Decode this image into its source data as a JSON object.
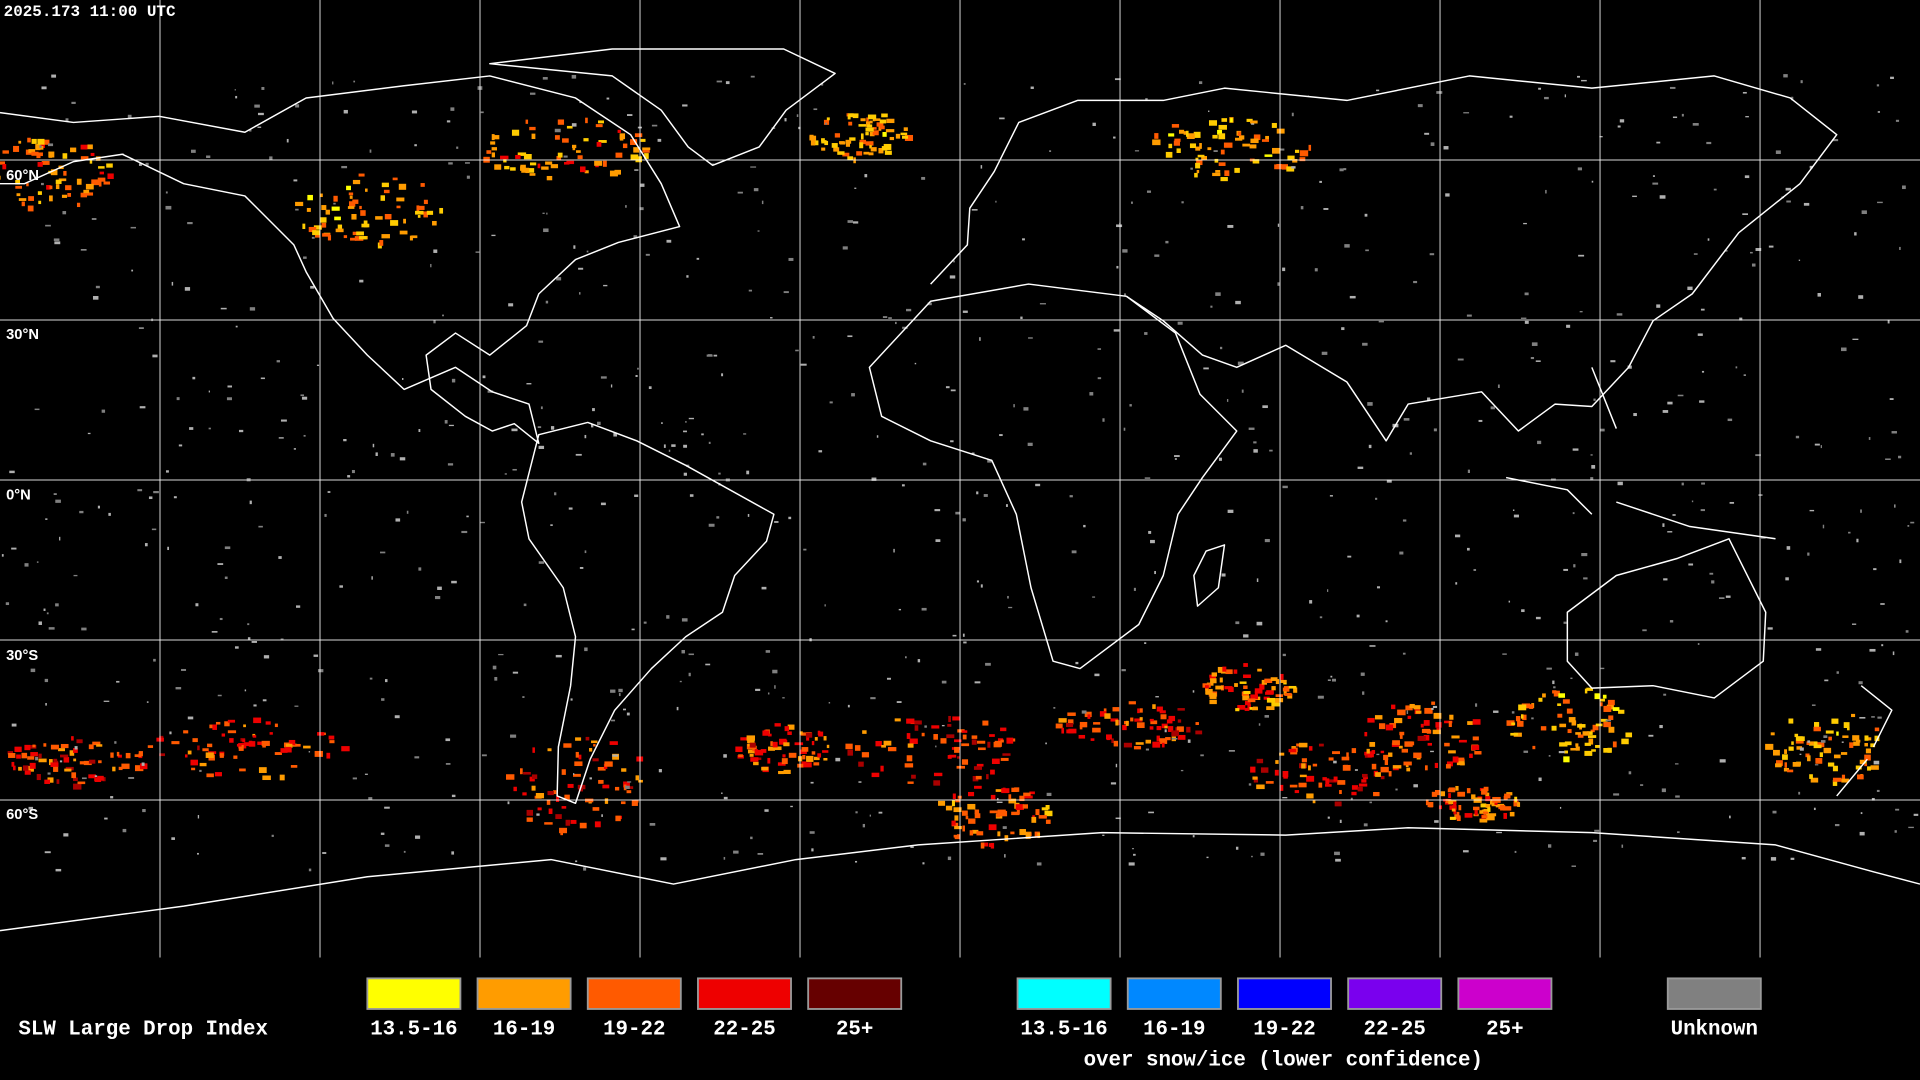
{
  "timestamp": "2025.173 11:00 UTC",
  "lat_labels": [
    "60°N",
    "30°N",
    "0°N",
    "30°S",
    "60°S"
  ],
  "legend": {
    "title": "SLW Large Drop Index",
    "groups": [
      {
        "items": [
          {
            "label": "13.5-16",
            "color": "#ffff00"
          },
          {
            "label": "16-19",
            "color": "#ff9c00"
          },
          {
            "label": "19-22",
            "color": "#ff5a00"
          },
          {
            "label": "22-25",
            "color": "#ee0000"
          },
          {
            "label": "25+",
            "color": "#660000"
          }
        ]
      },
      {
        "items": [
          {
            "label": "13.5-16",
            "color": "#00ffff"
          },
          {
            "label": "16-19",
            "color": "#0088ff"
          },
          {
            "label": "19-22",
            "color": "#0000ff"
          },
          {
            "label": "22-25",
            "color": "#7a00ee"
          },
          {
            "label": "25+",
            "color": "#cc00cc"
          }
        ],
        "caption": "over snow/ice (lower confidence)"
      },
      {
        "items": [
          {
            "label": "Unknown",
            "color": "#808080"
          }
        ]
      }
    ]
  }
}
